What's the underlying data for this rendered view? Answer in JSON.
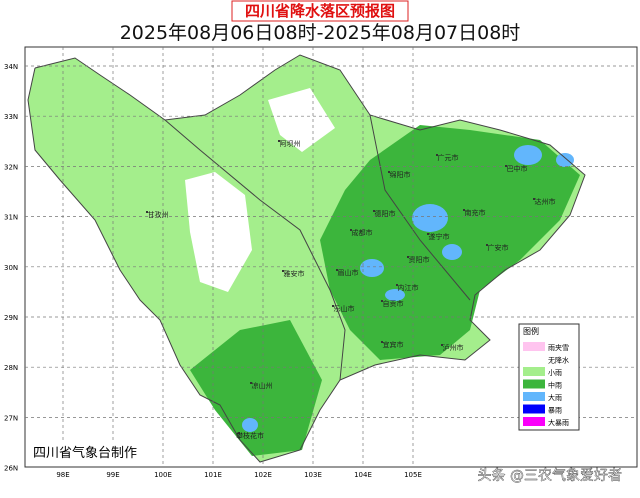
{
  "title": "四川省降水落区预报图",
  "subtitle": "2025年08月06日08时-2025年08月07日08时",
  "lat_labels": [
    "34N",
    "33N",
    "32N",
    "31N",
    "30N",
    "29N",
    "28N",
    "27N",
    "26N"
  ],
  "lon_labels": [
    "98E",
    "99E",
    "100E",
    "101E",
    "102E",
    "103E",
    "104E",
    "105E"
  ],
  "cities": [
    "阿坝州",
    "广元市",
    "巴中市",
    "绵阳市",
    "甘孜州",
    "德阳市",
    "南充市",
    "达州市",
    "成都市",
    "遂宁市",
    "广安市",
    "雅安市",
    "眉山市",
    "资阳市",
    "内江市",
    "乐山市",
    "自贡市",
    "宜宾市",
    "泸州市",
    "凉山州",
    "攀枝花市"
  ],
  "legend": {
    "title": "图例",
    "items": [
      {
        "label": "雨夹雪",
        "color": "#ffc4ef"
      },
      {
        "label": "无降水",
        "color": "#ffffff"
      },
      {
        "label": "小雨",
        "color": "#a4ee8c"
      },
      {
        "label": "中雨",
        "color": "#3cb53c"
      },
      {
        "label": "大雨",
        "color": "#62b6fc"
      },
      {
        "label": "暴雨",
        "color": "#0000fc"
      },
      {
        "label": "大暴雨",
        "color": "#fa00fa"
      }
    ]
  },
  "producer": "四川省气象台制作",
  "watermark": "头条 @三农气象爱好者"
}
